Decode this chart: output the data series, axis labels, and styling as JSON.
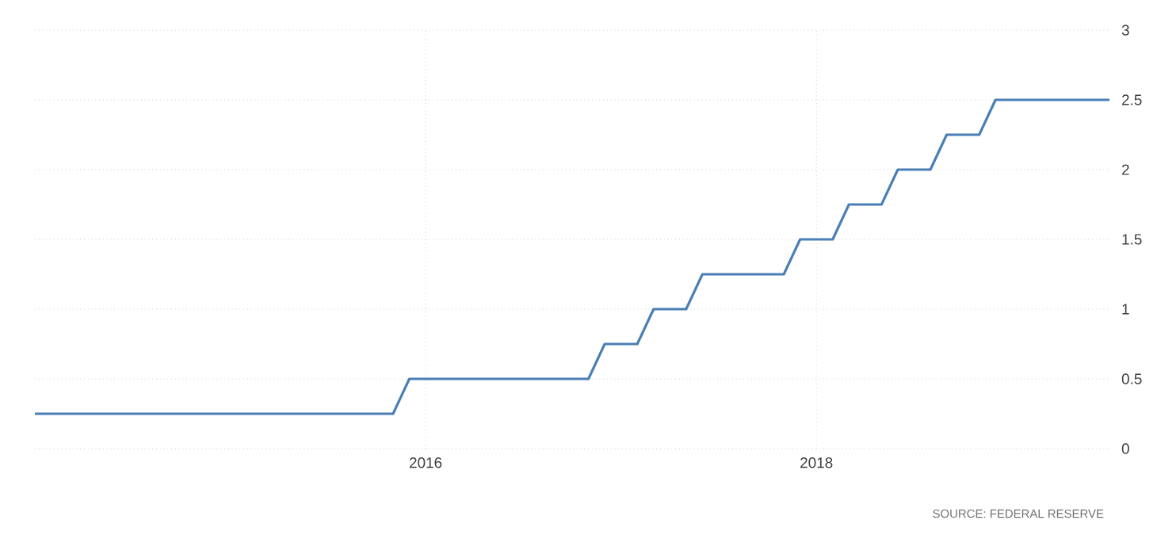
{
  "chart_data": {
    "type": "line",
    "x": [
      "2014-01",
      "2015-11",
      "2015-12",
      "2016-11",
      "2016-12",
      "2017-02",
      "2017-03",
      "2017-05",
      "2017-06",
      "2017-11",
      "2017-12",
      "2018-02",
      "2018-03",
      "2018-05",
      "2018-06",
      "2018-08",
      "2018-09",
      "2018-11",
      "2018-12",
      "2019-07"
    ],
    "series": [
      {
        "color": "#4a7fb5",
        "values": [
          0.25,
          0.25,
          0.5,
          0.5,
          0.75,
          0.75,
          1.0,
          1.0,
          1.25,
          1.25,
          1.5,
          1.5,
          1.75,
          1.75,
          2.0,
          2.0,
          2.25,
          2.25,
          2.5,
          2.5
        ]
      }
    ],
    "xlim": [
      "2014-01",
      "2019-07"
    ],
    "xticks": [
      {
        "value": "2016-01",
        "label": "2016"
      },
      {
        "value": "2018-01",
        "label": "2018"
      }
    ],
    "ylim": [
      0,
      3
    ],
    "yticks": [
      0,
      0.5,
      1,
      1.5,
      2,
      2.5,
      3
    ],
    "grid": true,
    "annotations": [
      "SOURCE: FEDERAL RESERVE"
    ]
  }
}
